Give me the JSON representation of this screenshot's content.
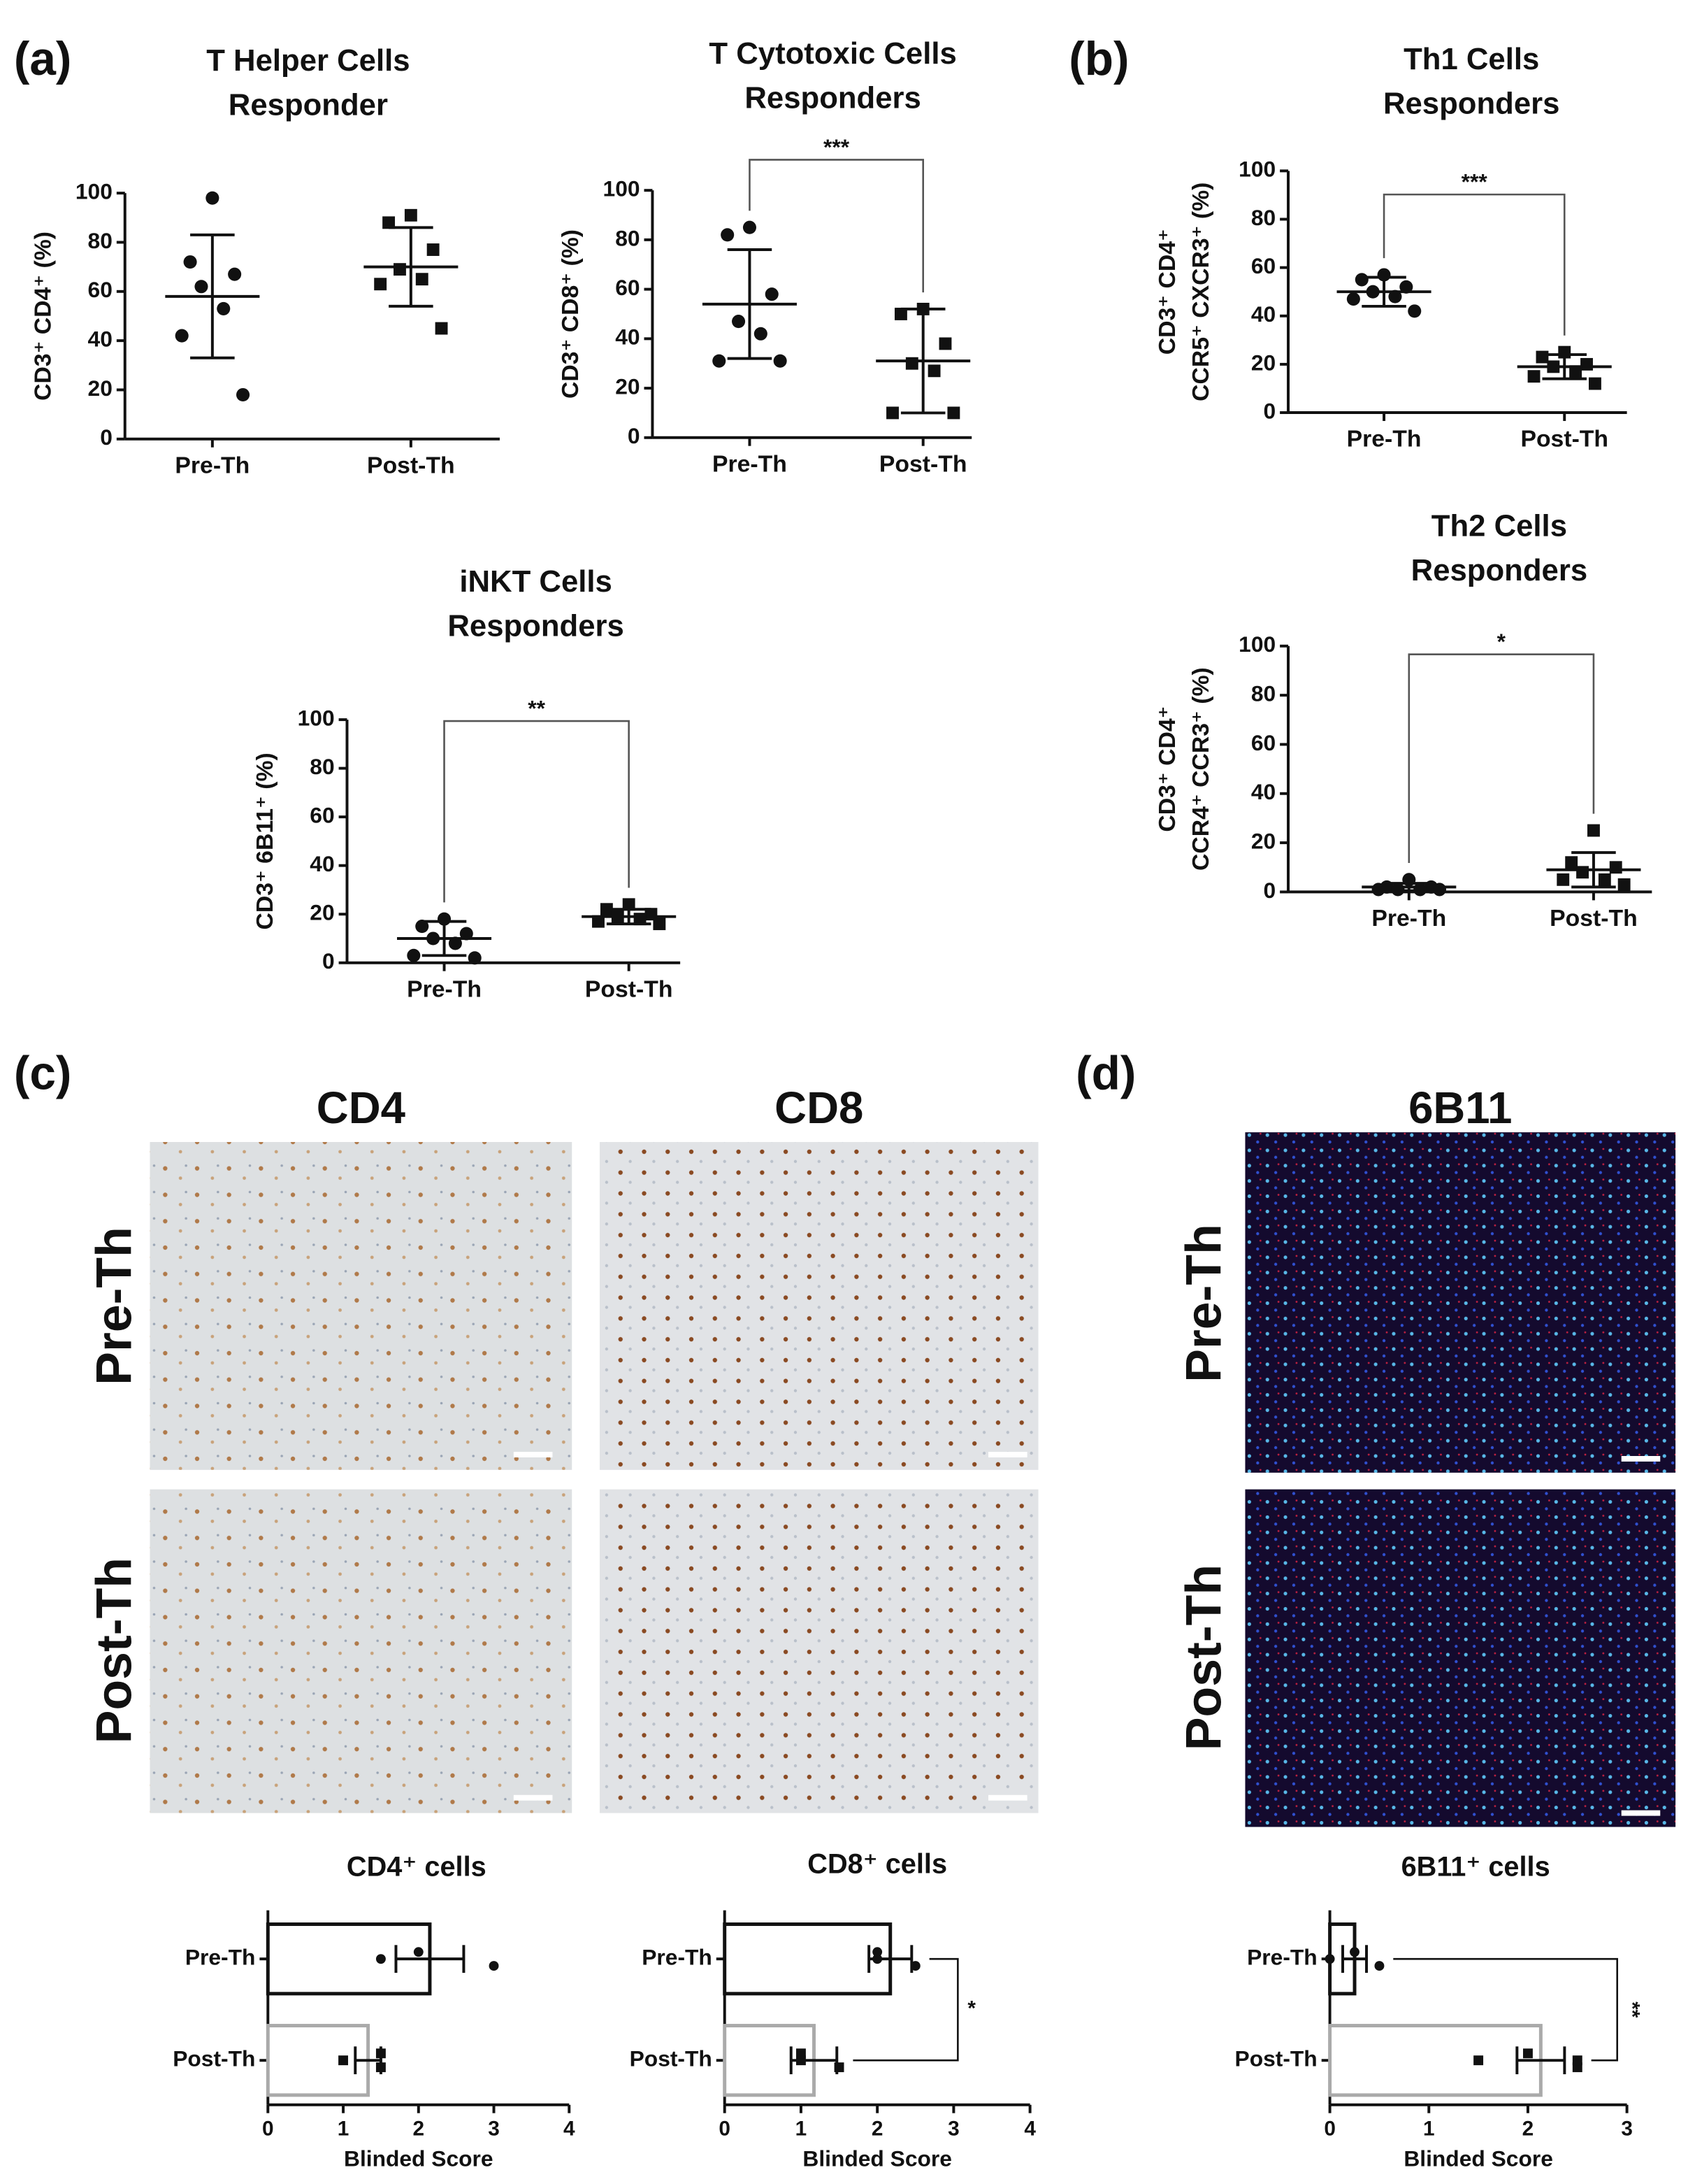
{
  "labels": {
    "panels": [
      "(a)",
      "(b)",
      "(c)",
      "(d)"
    ],
    "stains": [
      "CD4",
      "CD8",
      "6B11"
    ],
    "rows": [
      "Pre-Th",
      "Post-Th"
    ]
  },
  "chart_data": [
    {
      "type": "dotplot",
      "title": [
        "T Helper Cells",
        "Responder"
      ],
      "ylabel": [
        "CD3⁺ CD4⁺ (%)"
      ],
      "categories": [
        "Pre-Th",
        "Post-Th"
      ],
      "groups": [
        {
          "marker": "circle",
          "values": [
            98,
            72,
            67,
            62,
            53,
            42,
            18
          ],
          "mean": 58,
          "sd": 25
        },
        {
          "marker": "square",
          "values": [
            91,
            88,
            77,
            69,
            65,
            63,
            45
          ],
          "mean": 70,
          "sd": 16
        }
      ],
      "ylim": [
        0,
        100
      ],
      "yticks": [
        0,
        20,
        40,
        60,
        80,
        100
      ]
    },
    {
      "type": "dotplot",
      "title": [
        "T Cytotoxic Cells",
        "Responders"
      ],
      "ylabel": [
        "CD3⁺ CD8⁺ (%)"
      ],
      "categories": [
        "Pre-Th",
        "Post-Th"
      ],
      "groups": [
        {
          "marker": "circle",
          "values": [
            85,
            82,
            58,
            47,
            42,
            31,
            31
          ],
          "mean": 54,
          "sd": 22
        },
        {
          "marker": "square",
          "values": [
            52,
            50,
            38,
            30,
            27,
            10,
            10
          ],
          "mean": 31,
          "sd": 21
        }
      ],
      "ylim": [
        0,
        100
      ],
      "yticks": [
        0,
        20,
        40,
        60,
        80,
        100
      ],
      "annotation": "***"
    },
    {
      "type": "dotplot",
      "title": [
        "Th1 Cells",
        "Responders"
      ],
      "ylabel": [
        "CD3⁺ CD4⁺",
        "CCR5⁺ CXCR3⁺ (%)"
      ],
      "categories": [
        "Pre-Th",
        "Post-Th"
      ],
      "groups": [
        {
          "marker": "circle",
          "values": [
            57,
            55,
            52,
            50,
            48,
            47,
            42
          ],
          "mean": 50,
          "sd": 6
        },
        {
          "marker": "square",
          "values": [
            25,
            23,
            20,
            19,
            17,
            15,
            12
          ],
          "mean": 19,
          "sd": 5
        }
      ],
      "ylim": [
        0,
        100
      ],
      "yticks": [
        0,
        20,
        40,
        60,
        80,
        100
      ],
      "annotation": "***"
    },
    {
      "type": "dotplot",
      "title": [
        "Th2 Cells",
        "Responders"
      ],
      "ylabel": [
        "CD3⁺ CD4⁺",
        "CCR4⁺ CCR3⁺ (%)"
      ],
      "categories": [
        "Pre-Th",
        "Post-Th"
      ],
      "groups": [
        {
          "marker": "circle",
          "values": [
            5,
            2,
            2,
            1,
            1,
            1,
            1
          ],
          "mean": 2,
          "sd": 1.5
        },
        {
          "marker": "square",
          "values": [
            25,
            12,
            10,
            8,
            5,
            5,
            3
          ],
          "mean": 9,
          "sd": 7
        }
      ],
      "ylim": [
        0,
        100
      ],
      "yticks": [
        0,
        20,
        40,
        60,
        80,
        100
      ],
      "annotation": "*"
    },
    {
      "type": "dotplot",
      "title": [
        "iNKT Cells",
        "Responders"
      ],
      "ylabel": [
        "CD3⁺ 6B11⁺ (%)"
      ],
      "categories": [
        "Pre-Th",
        "Post-Th"
      ],
      "groups": [
        {
          "marker": "circle",
          "values": [
            18,
            15,
            12,
            10,
            8,
            3,
            2
          ],
          "mean": 10,
          "sd": 7
        },
        {
          "marker": "square",
          "values": [
            24,
            22,
            20,
            19,
            18,
            17,
            16
          ],
          "mean": 19,
          "sd": 3
        }
      ],
      "ylim": [
        0,
        100
      ],
      "yticks": [
        0,
        20,
        40,
        60,
        80,
        100
      ],
      "annotation": "**"
    },
    {
      "type": "barh",
      "title": [
        "CD4⁺ cells"
      ],
      "xlabel": "Blinded Score",
      "categories": [
        "Pre-Th",
        "Post-Th"
      ],
      "groups": [
        {
          "color": "#111111",
          "value": 2.15,
          "err": 0.45,
          "points": [
            1.5,
            2,
            3
          ]
        },
        {
          "color": "#aaaaaa",
          "value": 1.33,
          "err": 0.17,
          "points": [
            1,
            1.5,
            1.5
          ]
        }
      ],
      "xlim": [
        0,
        4
      ],
      "xticks": [
        0,
        1,
        2,
        3,
        4
      ]
    },
    {
      "type": "barh",
      "title": [
        "CD8⁺ cells"
      ],
      "xlabel": "Blinded Score",
      "categories": [
        "Pre-Th",
        "Post-Th"
      ],
      "groups": [
        {
          "color": "#111111",
          "value": 2.17,
          "err": 0.28,
          "points": [
            2,
            2,
            2.5
          ]
        },
        {
          "color": "#aaaaaa",
          "value": 1.17,
          "err": 0.3,
          "points": [
            1,
            1,
            1.5
          ]
        }
      ],
      "xlim": [
        0,
        4
      ],
      "xticks": [
        0,
        1,
        2,
        3,
        4
      ],
      "annotation": "*"
    },
    {
      "type": "barh",
      "title": [
        "6B11⁺ cells"
      ],
      "xlabel": "Blinded Score",
      "categories": [
        "Pre-Th",
        "Post-Th"
      ],
      "groups": [
        {
          "color": "#111111",
          "value": 0.25,
          "err": 0.12,
          "points": [
            0,
            0.25,
            0.5
          ]
        },
        {
          "color": "#aaaaaa",
          "value": 2.13,
          "err": 0.24,
          "points": [
            1.5,
            2,
            2.5,
            2.5
          ]
        }
      ],
      "xlim": [
        0,
        3
      ],
      "xticks": [
        0,
        1,
        2,
        3
      ],
      "annotation": "**"
    }
  ]
}
